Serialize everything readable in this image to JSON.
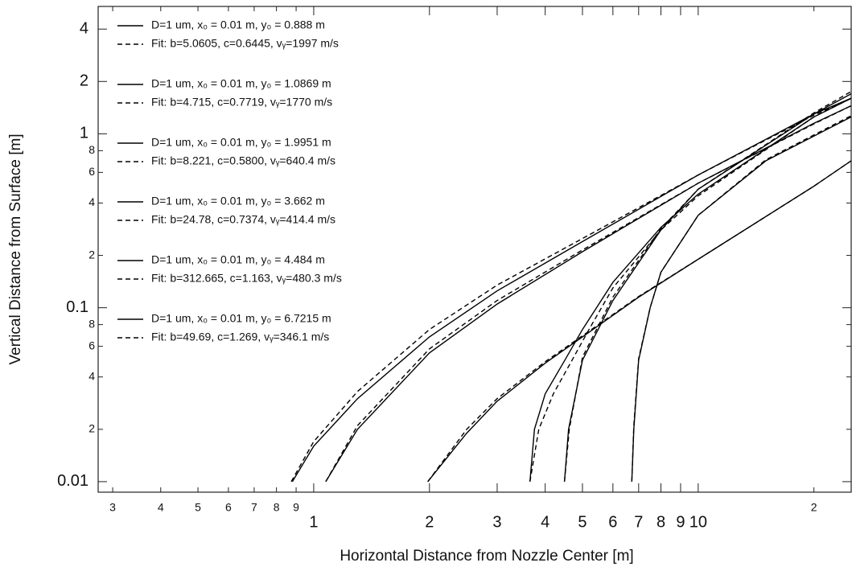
{
  "chart_data": {
    "type": "line",
    "x_label": "Horizontal Distance from Nozzle Center [m]",
    "y_label": "Vertical Distance from Surface [m]",
    "x_log": true,
    "y_log": true,
    "xlim": [
      0.275,
      25
    ],
    "ylim": [
      0.0087,
      5.4
    ],
    "xticks": [
      {
        "value": 0.3,
        "label": "3"
      },
      {
        "value": 0.4,
        "label": "4"
      },
      {
        "value": 0.5,
        "label": "5"
      },
      {
        "value": 0.6,
        "label": "6"
      },
      {
        "value": 0.7,
        "label": "7"
      },
      {
        "value": 0.8,
        "label": "8"
      },
      {
        "value": 0.9,
        "label": "9"
      },
      1,
      2,
      3,
      4,
      5,
      6,
      7,
      8,
      9,
      10,
      {
        "value": 20,
        "label": "2"
      }
    ],
    "yticks": [
      0.01,
      {
        "value": 0.02,
        "label": "2"
      },
      {
        "value": 0.04,
        "label": "4"
      },
      {
        "value": 0.06,
        "label": "6"
      },
      {
        "value": 0.08,
        "label": "8"
      },
      0.1,
      {
        "value": 0.2,
        "label": "2"
      },
      {
        "value": 0.4,
        "label": "4"
      },
      {
        "value": 0.6,
        "label": "6"
      },
      {
        "value": 0.8,
        "label": "8"
      },
      1,
      2,
      4
    ],
    "series": [
      {
        "name": "D=1 um, x₀ = 0.01 m, y₀ = 0.888 m",
        "color": "#000000",
        "dashed": false,
        "x": [
          0.88,
          1,
          1.3,
          2,
          3,
          5,
          10,
          20,
          25
        ],
        "values": [
          0.01,
          0.016,
          0.03,
          0.068,
          0.125,
          0.24,
          0.58,
          1.3,
          1.6
        ]
      },
      {
        "name": "Fit: b=5.0605, c=0.6445, vᵧ=1997 m/s",
        "color": "#000000",
        "dashed": true,
        "x": [
          0.874,
          1,
          1.3,
          2,
          3,
          5,
          10,
          20,
          25
        ],
        "values": [
          0.01,
          0.017,
          0.033,
          0.075,
          0.135,
          0.25,
          0.58,
          1.28,
          1.6
        ]
      },
      {
        "name": "D=1 um, x₀ = 0.01 m, y₀ = 1.0869 m",
        "color": "#000000",
        "dashed": false,
        "x": [
          1.075,
          1.3,
          2,
          3,
          5,
          10,
          20,
          25
        ],
        "values": [
          0.01,
          0.02,
          0.055,
          0.105,
          0.21,
          0.52,
          1.15,
          1.45
        ]
      },
      {
        "name": "Fit: b=4.715, c=0.7719, vᵧ=1770 m/s",
        "color": "#000000",
        "dashed": true,
        "x": [
          1.075,
          1.3,
          2,
          3,
          5,
          10,
          20,
          25
        ],
        "values": [
          0.01,
          0.021,
          0.058,
          0.11,
          0.215,
          0.52,
          1.14,
          1.45
        ]
      },
      {
        "name": "D=1 um, x₀ = 0.01 m, y₀ = 1.9951 m",
        "color": "#000000",
        "dashed": false,
        "x": [
          1.98,
          2.5,
          3,
          4,
          5,
          7,
          10,
          20,
          25
        ],
        "values": [
          0.01,
          0.019,
          0.029,
          0.048,
          0.068,
          0.115,
          0.19,
          0.5,
          0.7
        ]
      },
      {
        "name": "Fit: b=8.221, c=0.5800, vᵧ=640.4 m/s",
        "color": "#000000",
        "dashed": true,
        "x": [
          1.98,
          2.5,
          3,
          4,
          5,
          7,
          10,
          20,
          25
        ],
        "values": [
          0.01,
          0.02,
          0.03,
          0.049,
          0.069,
          0.116,
          0.19,
          0.5,
          0.7
        ]
      },
      {
        "name": "D=1 um, x₀ = 0.01 m, y₀ = 3.662 m",
        "color": "#000000",
        "dashed": false,
        "x": [
          3.65,
          3.75,
          4,
          4.5,
          5,
          6,
          8,
          10,
          20,
          25
        ],
        "values": [
          0.01,
          0.02,
          0.032,
          0.05,
          0.075,
          0.14,
          0.29,
          0.45,
          1.25,
          1.6
        ]
      },
      {
        "name": "Fit: b=24.78, c=0.7374, vᵧ=414.4 m/s",
        "color": "#000000",
        "dashed": true,
        "x": [
          3.65,
          3.85,
          4.2,
          4.7,
          5.2,
          6,
          8,
          10,
          20,
          25
        ],
        "values": [
          0.01,
          0.02,
          0.032,
          0.05,
          0.075,
          0.13,
          0.28,
          0.44,
          1.25,
          1.6
        ]
      },
      {
        "name": "D=1 um, x₀ = 0.01 m, y₀ = 4.484 m",
        "color": "#000000",
        "dashed": false,
        "x": [
          4.49,
          4.6,
          5,
          6,
          8,
          10,
          20,
          25
        ],
        "values": [
          0.01,
          0.02,
          0.05,
          0.11,
          0.28,
          0.48,
          1.3,
          1.7
        ]
      },
      {
        "name": "Fit: b=312.665, c=1.163, vᵧ=480.3 m/s",
        "color": "#000000",
        "dashed": true,
        "x": [
          4.49,
          4.62,
          5,
          6,
          8,
          10,
          20,
          25
        ],
        "values": [
          0.01,
          0.02,
          0.052,
          0.115,
          0.285,
          0.48,
          1.32,
          1.75
        ]
      },
      {
        "name": "D=1 um, x₀ = 0.01 m, y₀ = 6.7215 m",
        "color": "#000000",
        "dashed": false,
        "x": [
          6.72,
          6.8,
          7,
          7.5,
          8,
          10,
          15,
          25
        ],
        "values": [
          0.01,
          0.02,
          0.05,
          0.1,
          0.16,
          0.34,
          0.7,
          1.25
        ]
      },
      {
        "name": "Fit: b=49.69, c=1.269, vᵧ=346.1 m/s",
        "color": "#000000",
        "dashed": true,
        "x": [
          6.72,
          6.8,
          7,
          7.5,
          8,
          10,
          15,
          25
        ],
        "values": [
          0.01,
          0.021,
          0.051,
          0.1,
          0.16,
          0.34,
          0.71,
          1.27
        ]
      }
    ]
  }
}
